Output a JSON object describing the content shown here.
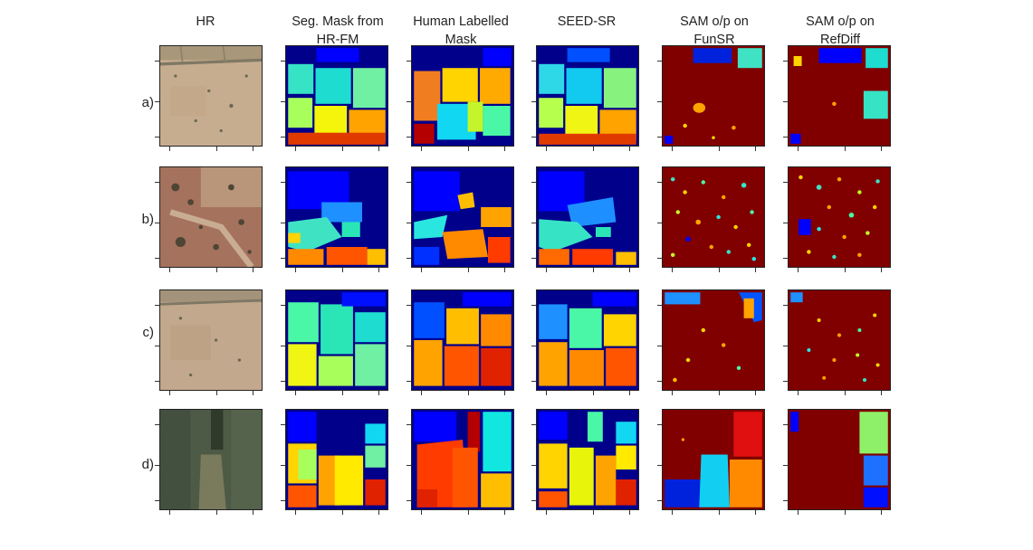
{
  "columns": [
    {
      "label_line1": "HR",
      "label_line2": ""
    },
    {
      "label_line1": "Seg. Mask from",
      "label_line2": "HR-FM"
    },
    {
      "label_line1": "Human Labelled",
      "label_line2": "Mask"
    },
    {
      "label_line1": "SEED-SR",
      "label_line2": ""
    },
    {
      "label_line1": "SAM o/p on",
      "label_line2": "FunSR"
    },
    {
      "label_line1": "SAM o/p on",
      "label_line2": "RefDiff"
    }
  ],
  "rows": [
    {
      "label": "a)"
    },
    {
      "label": "b)"
    },
    {
      "label": "c)"
    },
    {
      "label": "d)"
    }
  ],
  "colors": {
    "background_mask": "#00008b",
    "sam_background": "#800000",
    "hr_dry": "#c4ab8e",
    "hr_red": "#a0705a",
    "hr_green": "#4d5a45"
  }
}
